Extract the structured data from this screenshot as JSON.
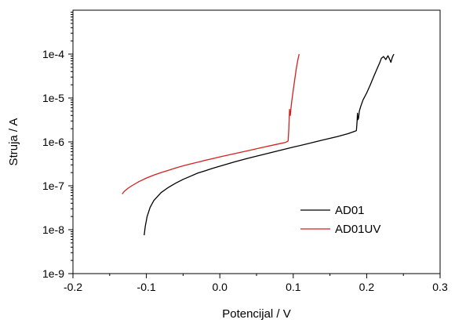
{
  "chart_data": {
    "type": "line",
    "title": "",
    "xlabel": "Potencijal / V",
    "ylabel": "Struja / A",
    "xlim": [
      -0.2,
      0.3
    ],
    "ylim": [
      1e-09,
      0.001
    ],
    "y_scale": "log",
    "grid": false,
    "legend_position": "bottom-right",
    "x_ticks": [
      -0.2,
      -0.1,
      0.0,
      0.1,
      0.2,
      0.3
    ],
    "x_tick_labels": [
      "-0.2",
      "-0.1",
      "0.0",
      "0.1",
      "0.2",
      "0.3"
    ],
    "y_ticks": [
      1e-09,
      1e-08,
      1e-07,
      1e-06,
      1e-05,
      0.0001
    ],
    "y_tick_labels": [
      "1e-9",
      "1e-8",
      "1e-7",
      "1e-6",
      "1e-5",
      "1e-4"
    ],
    "series": [
      {
        "name": "AD01",
        "color": "#000000",
        "points": [
          [
            -0.103,
            7.5e-09
          ],
          [
            -0.1015,
            1.2e-08
          ],
          [
            -0.099,
            2e-08
          ],
          [
            -0.095,
            3.2e-08
          ],
          [
            -0.09,
            4.6e-08
          ],
          [
            -0.08,
            7e-08
          ],
          [
            -0.07,
            9.2e-08
          ],
          [
            -0.06,
            1.15e-07
          ],
          [
            -0.05,
            1.4e-07
          ],
          [
            -0.04,
            1.65e-07
          ],
          [
            -0.03,
            1.95e-07
          ],
          [
            -0.02,
            2.2e-07
          ],
          [
            -0.01,
            2.5e-07
          ],
          [
            0.0,
            2.8e-07
          ],
          [
            0.02,
            3.5e-07
          ],
          [
            0.04,
            4.3e-07
          ],
          [
            0.06,
            5.2e-07
          ],
          [
            0.08,
            6.3e-07
          ],
          [
            0.1,
            7.6e-07
          ],
          [
            0.12,
            9.1e-07
          ],
          [
            0.14,
            1.1e-06
          ],
          [
            0.16,
            1.32e-06
          ],
          [
            0.175,
            1.55e-06
          ],
          [
            0.184,
            1.75e-06
          ],
          [
            0.186,
            1.8e-06
          ],
          [
            0.187,
            3e-06
          ],
          [
            0.1875,
            4.5e-06
          ],
          [
            0.188,
            3.2e-06
          ],
          [
            0.189,
            3.5e-06
          ],
          [
            0.19,
            5e-06
          ],
          [
            0.192,
            6.5e-06
          ],
          [
            0.195,
            9e-06
          ],
          [
            0.2,
            1.3e-05
          ],
          [
            0.205,
            2e-05
          ],
          [
            0.21,
            3.2e-05
          ],
          [
            0.215,
            5e-05
          ],
          [
            0.218,
            6.5e-05
          ],
          [
            0.22,
            8e-05
          ],
          [
            0.223,
            8.8e-05
          ],
          [
            0.226,
            7.5e-05
          ],
          [
            0.229,
            9.2e-05
          ],
          [
            0.231,
            7.8e-05
          ],
          [
            0.233,
            6.5e-05
          ],
          [
            0.235,
            8.5e-05
          ],
          [
            0.237,
            0.0001
          ]
        ]
      },
      {
        "name": "AD01UV",
        "color": "#d42020",
        "points": [
          [
            -0.133,
            6.5e-08
          ],
          [
            -0.13,
            7.5e-08
          ],
          [
            -0.125,
            8.8e-08
          ],
          [
            -0.12,
            1e-07
          ],
          [
            -0.11,
            1.25e-07
          ],
          [
            -0.1,
            1.5e-07
          ],
          [
            -0.09,
            1.75e-07
          ],
          [
            -0.08,
            2e-07
          ],
          [
            -0.07,
            2.25e-07
          ],
          [
            -0.06,
            2.55e-07
          ],
          [
            -0.05,
            2.85e-07
          ],
          [
            -0.04,
            3.15e-07
          ],
          [
            -0.03,
            3.45e-07
          ],
          [
            -0.02,
            3.8e-07
          ],
          [
            -0.01,
            4.15e-07
          ],
          [
            0.0,
            4.55e-07
          ],
          [
            0.02,
            5.4e-07
          ],
          [
            0.04,
            6.4e-07
          ],
          [
            0.06,
            7.6e-07
          ],
          [
            0.08,
            9e-07
          ],
          [
            0.09,
            9.8e-07
          ],
          [
            0.093,
            1.05e-06
          ],
          [
            0.094,
            2e-06
          ],
          [
            0.0945,
            3.5e-06
          ],
          [
            0.095,
            5.5e-06
          ],
          [
            0.096,
            4e-06
          ],
          [
            0.097,
            6e-06
          ],
          [
            0.098,
            8.5e-06
          ],
          [
            0.1,
            1.5e-05
          ],
          [
            0.102,
            2.6e-05
          ],
          [
            0.104,
            4.5e-05
          ],
          [
            0.106,
            7e-05
          ],
          [
            0.108,
            0.0001
          ]
        ]
      }
    ]
  }
}
